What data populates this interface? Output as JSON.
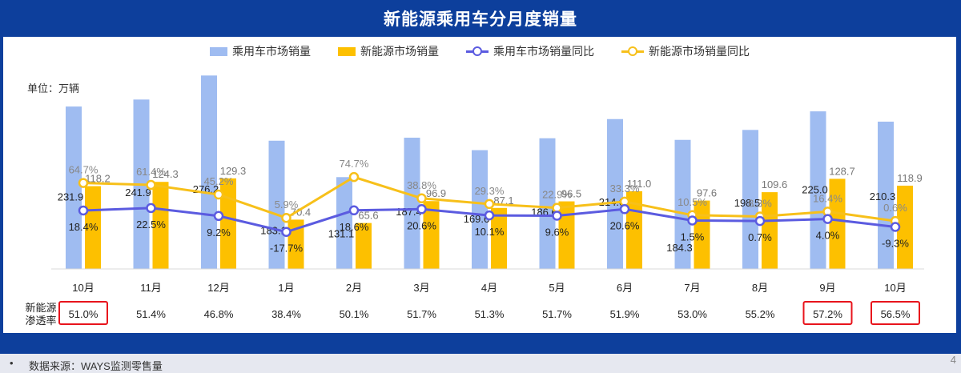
{
  "title": "新能源乘用车分月度销量",
  "unit": "单位：万辆",
  "legend": {
    "bar1": "乘用车市场销量",
    "bar2": "新能源市场销量",
    "line1": "乘用车市场销量同比",
    "line2": "新能源市场销量同比"
  },
  "penetration_label": "新能源渗透率",
  "penetration_label_lines": [
    "新能源",
    "渗透率"
  ],
  "penetration": [
    "51.0%",
    "51.4%",
    "46.8%",
    "38.4%",
    "50.1%",
    "51.7%",
    "51.3%",
    "51.7%",
    "51.9%",
    "53.0%",
    "55.2%",
    "57.2%",
    "56.5%"
  ],
  "highlighted_penetration": [
    0,
    11,
    12
  ],
  "footer": {
    "bullet": "•",
    "source": "数据来源：WAYS监测零售量",
    "page": "4"
  },
  "colors": {
    "header": "#0d3f9c",
    "bar_passenger": "#9fbcf1",
    "bar_nev": "#fdc000",
    "line_passenger": "#5b5be0",
    "line_nev": "#f7c01a",
    "highlight": "#e8141c"
  },
  "chart_data": {
    "type": "bar+line",
    "categories": [
      "10月",
      "11月",
      "12月",
      "1月",
      "2月",
      "3月",
      "4月",
      "5月",
      "6月",
      "7月",
      "8月",
      "9月",
      "10月"
    ],
    "series": [
      {
        "name": "乘用车市场销量",
        "type": "bar",
        "axis": "left",
        "values": [
          231.9,
          241.9,
          276.2,
          183.1,
          131.1,
          187.4,
          169.6,
          186.6,
          214.0,
          184.3,
          198.5,
          225.0,
          210.3
        ],
        "labels": [
          "231.9",
          "241.9",
          "276.2",
          "183.1",
          "131.1",
          "187.4",
          "169.6",
          "186.6",
          "214.0",
          "184.3",
          "198.5",
          "225.0",
          "210.3"
        ]
      },
      {
        "name": "新能源市场销量",
        "type": "bar",
        "axis": "left",
        "values": [
          118.2,
          124.3,
          129.3,
          70.4,
          65.6,
          96.9,
          87.1,
          96.5,
          111.0,
          97.6,
          109.6,
          128.7,
          118.9
        ],
        "labels": [
          "118.2",
          "124.3",
          "129.3",
          "70.4",
          "65.6",
          "96.9",
          "87.1",
          "96.5",
          "111.0",
          "97.6",
          "109.6",
          "128.7",
          "118.9"
        ]
      },
      {
        "name": "乘用车市场销量同比",
        "type": "line",
        "axis": "right",
        "values": [
          18.4,
          22.5,
          9.2,
          -17.7,
          18.6,
          20.6,
          10.1,
          9.6,
          20.6,
          1.5,
          0.7,
          4.0,
          -9.3
        ],
        "labels": [
          "18.4%",
          "22.5%",
          "9.2%",
          "-17.7%",
          "18.6%",
          "20.6%",
          "10.1%",
          "9.6%",
          "20.6%",
          "1.5%",
          "0.7%",
          "4.0%",
          "-9.3%"
        ]
      },
      {
        "name": "新能源市场销量同比",
        "type": "line",
        "axis": "right",
        "values": [
          64.7,
          61.4,
          45.2,
          5.9,
          74.7,
          38.8,
          29.3,
          22.9,
          33.3,
          10.5,
          8.3,
          16.4,
          0.6
        ],
        "labels": [
          "64.7%",
          "61.4%",
          "45.2%",
          "5.9%",
          "74.7%",
          "38.8%",
          "29.3%",
          "22.9%",
          "33.3%",
          "10.5%",
          "8.3%",
          "16.4%",
          "0.6%"
        ]
      }
    ],
    "ylim_left": [
      0,
      280
    ],
    "ylim_right": [
      -80,
      250
    ],
    "ylabel": "单位：万辆",
    "grid": false,
    "legend_position": "top"
  }
}
